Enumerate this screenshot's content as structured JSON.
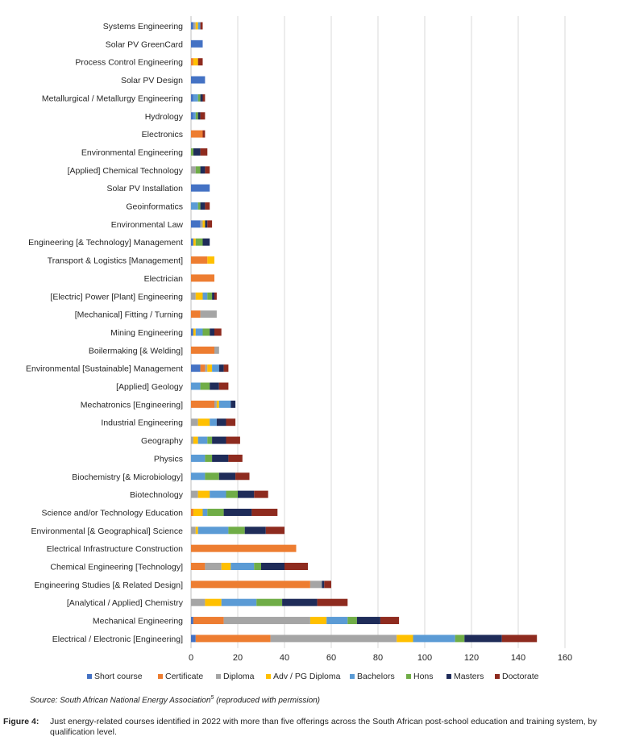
{
  "chart_data": {
    "type": "stacked-horizontal-bar",
    "xlim": [
      0,
      160
    ],
    "xticks": [
      "0",
      "20",
      "40",
      "60",
      "80",
      "100",
      "120",
      "140",
      "160"
    ],
    "grid": true,
    "legend_position": "bottom",
    "categories": [
      "Systems Engineering",
      "Solar PV GreenCard",
      "Process Control Engineering",
      "Solar PV Design",
      "Metallurgical / Metallurgy Engineering",
      "Hydrology",
      "Electronics",
      "Environmental Engineering",
      "[Applied] Chemical Technology",
      "Solar PV Installation",
      "Geoinformatics",
      "Environmental Law",
      "Engineering [& Technology] Management",
      "Transport & Logistics [Management]",
      "Electrician",
      "[Electric] Power [Plant] Engineering",
      "[Mechanical] Fitting  / Turning",
      "Mining Engineering",
      "Boilermaking [& Welding]",
      "Environmental [Sustainable] Management",
      "[Applied] Geology",
      "Mechatronics [Engineering]",
      "Industrial Engineering",
      "Geography",
      "Physics",
      "Biochemistry [& Microbiology]",
      "Biotechnology",
      "Science and/or Technology Education",
      "Environmental [& Geographical] Science",
      "Electrical Infrastructure Construction",
      "Chemical Engineering [Technology]",
      "Engineering Studies [& Related Design]",
      "[Analytical / Applied] Chemistry",
      "Mechanical Engineering",
      "Electrical  / Electronic [Engineering]"
    ],
    "series": [
      {
        "name": "Short course",
        "color": "#4472c4",
        "values": [
          1,
          5,
          0,
          6,
          1,
          1,
          0,
          0,
          0,
          8,
          0,
          4,
          1,
          0,
          0,
          0,
          0,
          1,
          0,
          4,
          0,
          0,
          0,
          0,
          0,
          0,
          0,
          0,
          0,
          0,
          0,
          0,
          0,
          1,
          2
        ]
      },
      {
        "name": "Certificate",
        "color": "#ed7d31",
        "values": [
          0,
          0,
          1,
          0,
          0,
          0,
          5,
          0,
          0,
          0,
          0,
          0,
          0,
          7,
          10,
          0,
          4,
          0,
          10,
          2,
          0,
          10,
          0,
          0,
          0,
          0,
          0,
          1,
          0,
          45,
          6,
          51,
          0,
          13,
          32
        ]
      },
      {
        "name": "Diploma",
        "color": "#a5a5a5",
        "values": [
          1,
          0,
          0,
          0,
          0,
          0,
          0,
          0,
          2,
          0,
          0,
          1,
          0,
          0,
          0,
          2,
          7,
          0,
          2,
          1,
          0,
          1,
          3,
          1,
          0,
          0,
          3,
          0,
          2,
          0,
          7,
          5,
          6,
          37,
          54
        ]
      },
      {
        "name": "Adv / PG Diploma",
        "color": "#ffc000",
        "values": [
          1,
          0,
          2,
          0,
          0,
          0,
          0,
          0,
          0,
          0,
          0,
          1,
          1,
          3,
          0,
          3,
          0,
          1,
          0,
          2,
          0,
          1,
          5,
          2,
          0,
          0,
          5,
          4,
          1,
          0,
          4,
          0,
          7,
          7,
          7
        ]
      },
      {
        "name": "Bachelors",
        "color": "#5b9bd5",
        "values": [
          1,
          0,
          0,
          0,
          2,
          1,
          0,
          0,
          0,
          0,
          3,
          0,
          0,
          0,
          0,
          2,
          0,
          3,
          0,
          3,
          4,
          5,
          3,
          4,
          6,
          6,
          7,
          2,
          13,
          0,
          10,
          0,
          15,
          9,
          18
        ]
      },
      {
        "name": "Hons",
        "color": "#70ad47",
        "values": [
          0,
          0,
          0,
          0,
          1,
          1,
          0,
          1,
          2,
          0,
          1,
          0,
          3,
          0,
          0,
          2,
          0,
          3,
          0,
          0,
          4,
          0,
          0,
          2,
          3,
          6,
          5,
          7,
          7,
          0,
          3,
          0,
          11,
          4,
          4
        ]
      },
      {
        "name": "Masters",
        "color": "#1f2c59",
        "values": [
          0,
          0,
          0,
          0,
          1,
          1,
          0,
          3,
          2,
          0,
          2,
          1,
          3,
          0,
          0,
          1,
          0,
          2,
          0,
          2,
          4,
          2,
          4,
          6,
          7,
          7,
          7,
          12,
          9,
          0,
          10,
          1,
          15,
          10,
          16
        ]
      },
      {
        "name": "Doctorate",
        "color": "#8e2b1f",
        "values": [
          1,
          0,
          2,
          0,
          1,
          2,
          1,
          3,
          2,
          0,
          2,
          2,
          0,
          0,
          0,
          1,
          0,
          3,
          0,
          2,
          4,
          0,
          4,
          6,
          6,
          6,
          6,
          11,
          8,
          0,
          10,
          3,
          13,
          8,
          15
        ]
      }
    ]
  },
  "source_note": {
    "text": "Source: South African National Energy Association",
    "ref": "5",
    "suffix": " (reproduced with permission)"
  },
  "caption": {
    "label": "Figure 4:",
    "text": "Just energy-related courses identified in 2022 with more than five offerings across the South African post-school education and training system, by qualification level."
  }
}
